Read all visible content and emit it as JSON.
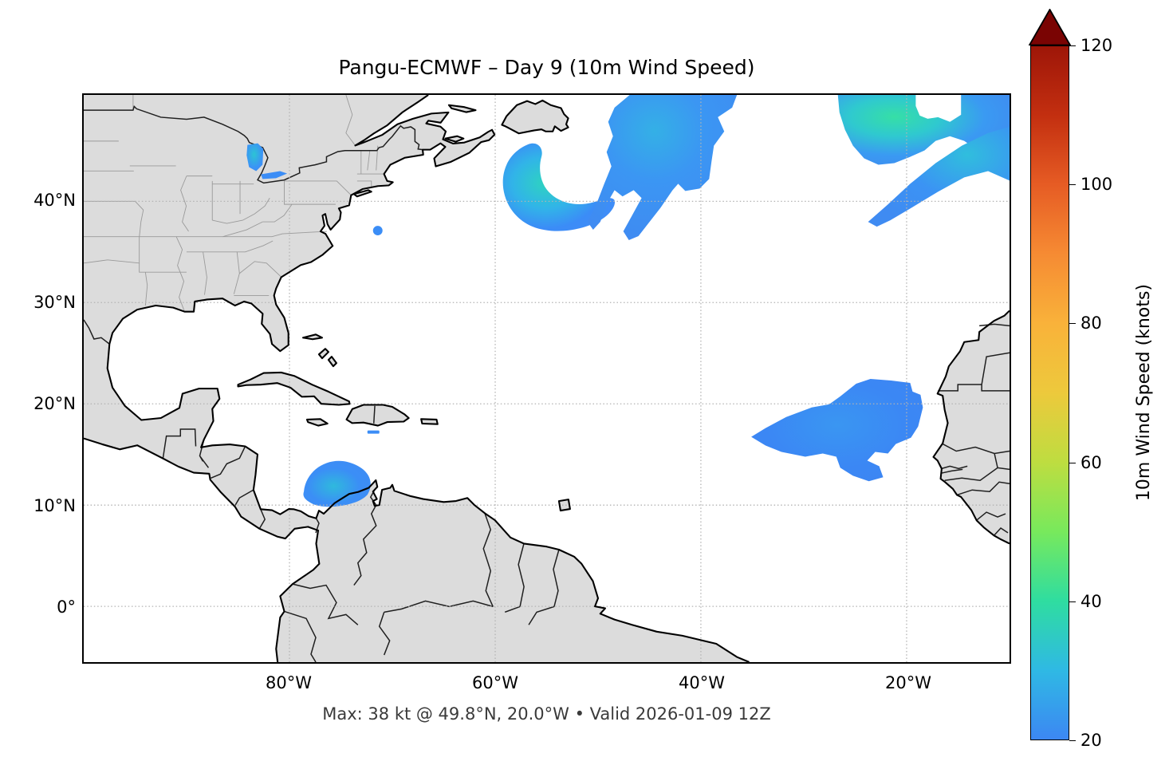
{
  "figure": {
    "title": "Pangu-ECMWF – Day 9 (10m Wind Speed)",
    "caption": "Max: 38 kt @ 49.8°N, 20.0°W • Valid 2026-01-09 12Z"
  },
  "axes": {
    "x_ticks": [
      "80°W",
      "60°W",
      "40°W",
      "20°W"
    ],
    "y_ticks": [
      "40°N",
      "30°N",
      "20°N",
      "10°N",
      "0°"
    ],
    "lon_range": [
      "100°W",
      "10°W"
    ],
    "lat_range": [
      "5.5°S",
      "50.5°N"
    ]
  },
  "colorbar": {
    "label": "10m Wind Speed (knots)",
    "min": 20,
    "max": 120,
    "ticks": [
      120,
      100,
      80,
      60,
      40,
      20
    ],
    "arrow_color": "#7a0403",
    "stops": [
      {
        "v": 120,
        "c": "#9e1608"
      },
      {
        "v": 110,
        "c": "#c32f10"
      },
      {
        "v": 100,
        "c": "#e65c24"
      },
      {
        "v": 90,
        "c": "#f68b33"
      },
      {
        "v": 80,
        "c": "#f9b23a"
      },
      {
        "v": 70,
        "c": "#edc93c"
      },
      {
        "v": 60,
        "c": "#bedd40"
      },
      {
        "v": 50,
        "c": "#78e95c"
      },
      {
        "v": 40,
        "c": "#2fdda0"
      },
      {
        "v": 30,
        "c": "#2fb9e4"
      },
      {
        "v": 20,
        "c": "#3c87f3"
      }
    ]
  },
  "map": {
    "land_color": "#dcdcdc",
    "coast_color": "#000000",
    "state_border_color": "#9a9a9a",
    "country_border_color": "#1f1f1f",
    "grid_color": "#b3b3b3",
    "wind_colors": {
      "low": "#3b8af5",
      "mid": "#2cc9c9",
      "high": "#36dfa6"
    },
    "wind_features": [
      {
        "name": "northwest-atlantic-crescent",
        "approx_center": "55°W 41°N",
        "peak_kt_est": 33
      },
      {
        "name": "central-north-atlantic-mass",
        "approx_center": "43°W 46°N",
        "peak_kt_est": 30
      },
      {
        "name": "northeast-atlantic-maximum",
        "approx_center": "20°W 48°N",
        "peak_kt_est": 38
      },
      {
        "name": "northeast-atlantic-streak",
        "approx_center": "15°W 42°N",
        "peak_kt_est": 31
      },
      {
        "name": "west-africa-trade-wind-area",
        "approx_center": "25°W 18°N",
        "peak_kt_est": 26
      },
      {
        "name": "colombia-coast-jet",
        "approx_center": "75°W 12.5°N",
        "peak_kt_est": 30
      },
      {
        "name": "lake-huron-patch",
        "approx_center": "83.5°W 44.5°N",
        "peak_kt_est": 30
      },
      {
        "name": "lake-erie-sliver",
        "approx_center": "81°W 42.5°N",
        "peak_kt_est": 24
      },
      {
        "name": "gulf-stream-speck",
        "approx_center": "71.5°W 37°N",
        "peak_kt_est": 23
      },
      {
        "name": "hispaniola-south-dash",
        "approx_center": "72°W 17.2°N",
        "peak_kt_est": 22
      }
    ]
  }
}
